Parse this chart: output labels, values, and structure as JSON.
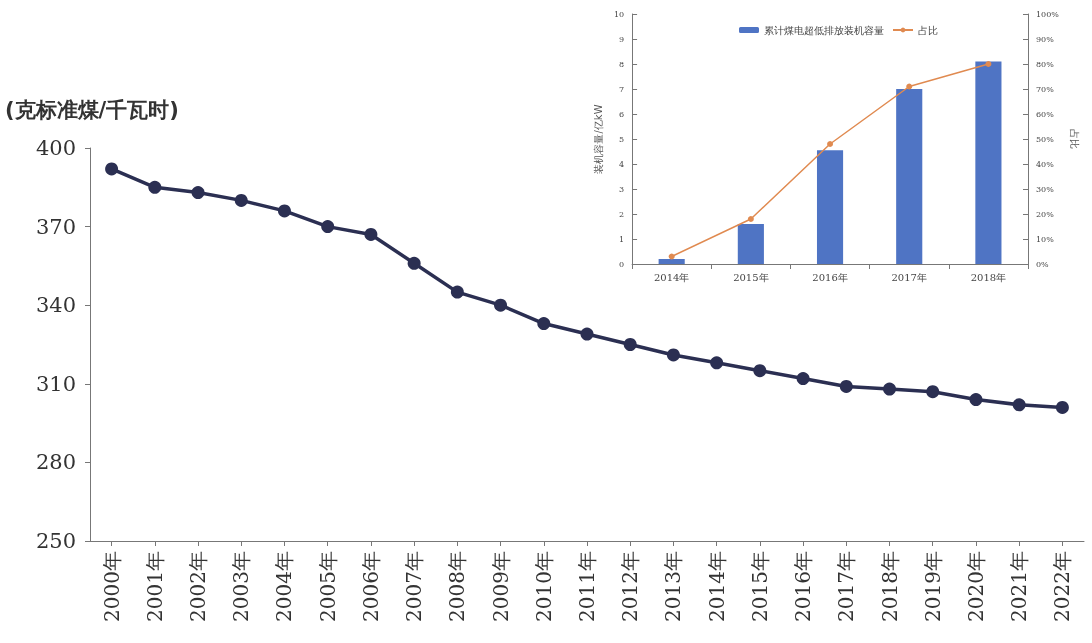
{
  "chart_data": [
    {
      "type": "line",
      "ylabel": "(克标准煤/千瓦时)",
      "categories": [
        "2000年",
        "2001年",
        "2002年",
        "2003年",
        "2004年",
        "2005年",
        "2006年",
        "2007年",
        "2008年",
        "2009年",
        "2010年",
        "2011年",
        "2012年",
        "2013年",
        "2014年",
        "2015年",
        "2016年",
        "2017年",
        "2018年",
        "2019年",
        "2020年",
        "2021年",
        "2022年"
      ],
      "series": [
        {
          "color": "#2b2f52",
          "values": [
            392,
            385,
            383,
            380,
            376,
            370,
            367,
            356,
            345,
            340,
            333,
            329,
            325,
            321,
            318,
            315,
            312,
            309,
            308,
            307,
            304,
            302,
            301
          ]
        }
      ],
      "ylim": [
        250,
        400
      ],
      "yticks": [
        250,
        280,
        310,
        340,
        370,
        400
      ],
      "grid": false,
      "marker": "circle",
      "line_style": "solid"
    },
    {
      "type": "bar",
      "ylabel": "装机容量/亿kW",
      "y2label": "占比",
      "categories": [
        "2014年",
        "2015年",
        "2016年",
        "2017年",
        "2018年"
      ],
      "series": [
        {
          "name": "累计煤电超低排放装机容量",
          "color": "#4f74c4",
          "values": [
            0.2,
            1.6,
            4.55,
            7.0,
            8.1
          ]
        },
        {
          "name": "占比",
          "type": "line",
          "axis": "y2",
          "color": "#e08a50",
          "values": [
            3,
            18,
            48,
            71,
            80
          ]
        }
      ],
      "ylim": [
        0,
        10
      ],
      "yticks": [
        0,
        1,
        2,
        3,
        4,
        5,
        6,
        7,
        8,
        9,
        10
      ],
      "y2lim": [
        0,
        100
      ],
      "y2ticks": [
        {
          "value": 0,
          "label": "0%"
        },
        {
          "value": 10,
          "label": "10%"
        },
        {
          "value": 20,
          "label": "20%"
        },
        {
          "value": 30,
          "label": "30%"
        },
        {
          "value": 40,
          "label": "40%"
        },
        {
          "value": 50,
          "label": "50%"
        },
        {
          "value": 60,
          "label": "60%"
        },
        {
          "value": 70,
          "label": "70%"
        },
        {
          "value": 80,
          "label": "80%"
        },
        {
          "value": 90,
          "label": "90%"
        },
        {
          "value": 100,
          "label": "100%"
        }
      ],
      "grid": false,
      "legend": "top",
      "marker": "circle",
      "line_style": "solid"
    }
  ]
}
